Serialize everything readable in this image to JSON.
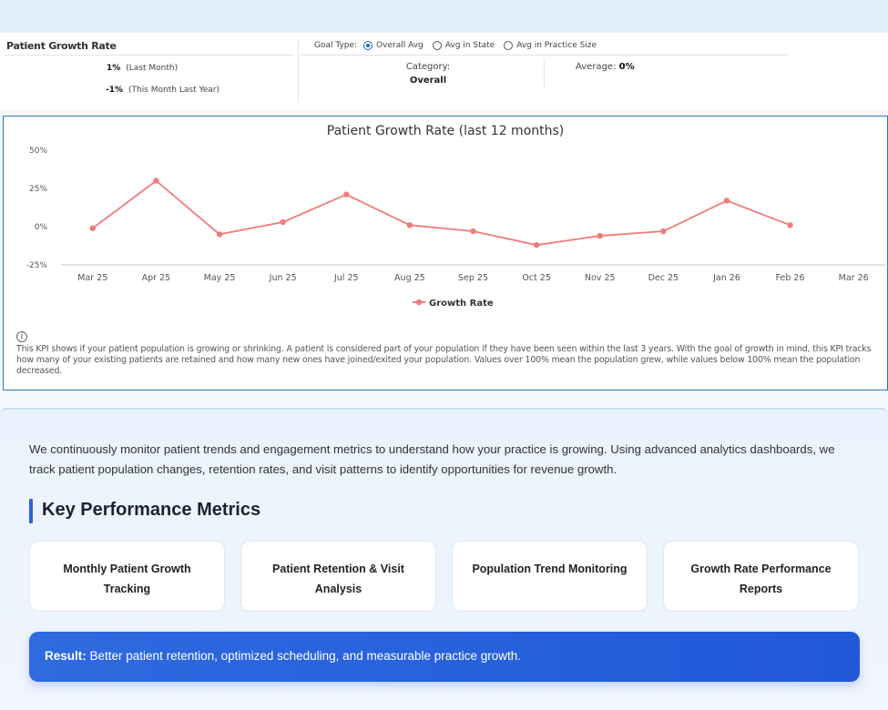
{
  "kpi": {
    "title": "Patient Growth Rate",
    "last_month_value": "1%",
    "last_month_label": "(Last Month)",
    "last_year_value": "-1%",
    "last_year_label": "(This Month Last Year)",
    "goal_type_label": "Goal Type:",
    "goal_options": [
      "Overall Avg",
      "Avg in State",
      "Avg in Practice Size"
    ],
    "goal_selected": "Overall Avg",
    "category_label": "Category:",
    "category_value": "Overall",
    "average_label": "Average:",
    "average_value": "0%"
  },
  "chart_data": {
    "type": "line",
    "title": "Patient Growth Rate (last 12 months)",
    "x": [
      "Mar 25",
      "Apr 25",
      "May 25",
      "Jun 25",
      "Jul 25",
      "Aug 25",
      "Sep 25",
      "Oct 25",
      "Nov 25",
      "Dec 25",
      "Jan 26",
      "Feb 26",
      "Mar 26"
    ],
    "y_ticks": [
      "50%",
      "25%",
      "0%",
      "-25%"
    ],
    "ylim": [
      -25,
      50
    ],
    "series": [
      {
        "name": "Growth Rate",
        "color": "#f07b7b",
        "values": [
          -1,
          30,
          -5,
          3,
          21,
          1,
          -3,
          -12,
          -6,
          -3,
          17,
          1,
          null
        ]
      }
    ],
    "legend_position": "bottom-center",
    "grid": false
  },
  "info_text": "This KPI shows if your patient population is growing or shrinking. A patient is considered part of your population if they have been seen within the last 3 years. With the goal of growth in mind, this KPI tracks how many of your existing patients are retained and how many new ones have joined/exited your population. Values over 100% mean the population grew, while values below 100% mean the population decreased.",
  "info_icon": "info-icon",
  "intro": "We continuously monitor patient trends and engagement metrics to understand how your practice is growing. Using advanced analytics dashboards, we track patient population changes, retention rates, and visit patterns to identify opportunities for revenue growth.",
  "section_title": "Key Performance Metrics",
  "metrics": [
    "Monthly Patient Growth Tracking",
    "Patient Retention & Visit Analysis",
    "Population Trend Monitoring",
    "Growth Rate Performance Reports"
  ],
  "result": {
    "label": "Result:",
    "text": " Better patient retention, optimized scheduling, and measurable practice growth."
  },
  "colors": {
    "accent": "#2c63d9",
    "chart_line": "#f07b7b",
    "panel_border": "#2b79b8"
  }
}
